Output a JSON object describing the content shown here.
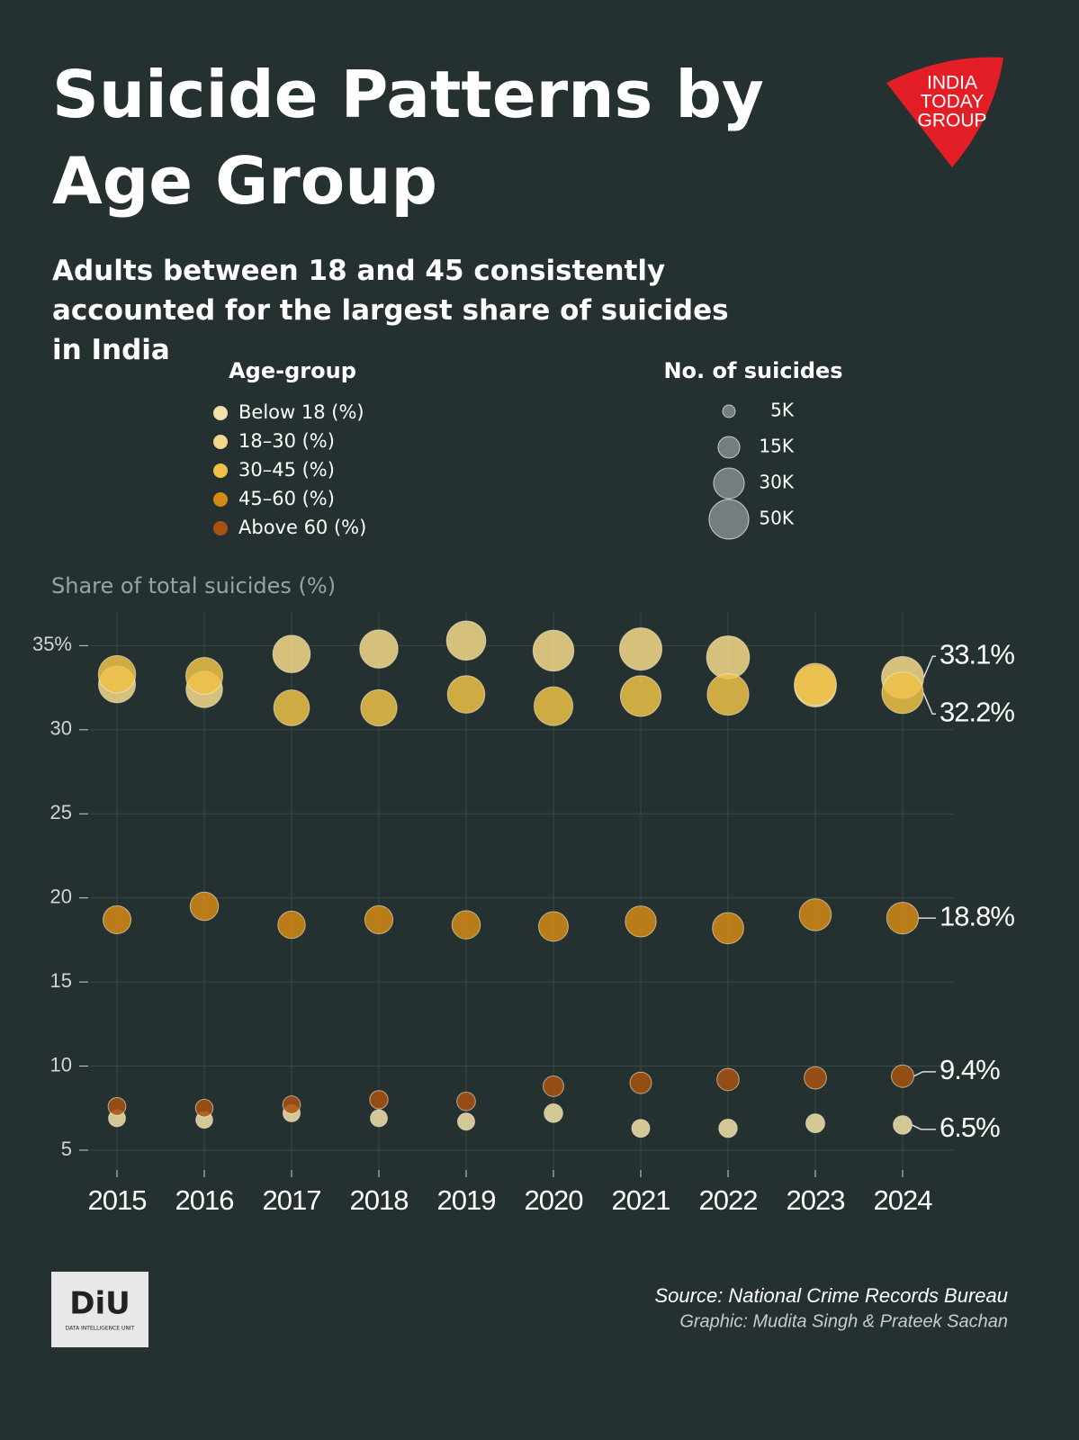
{
  "chart_data": {
    "type": "bubble",
    "title": "Suicide Patterns by Age Group",
    "subtitle": "Adults between 18 and 45 consistently accounted for the largest share of suicides in India",
    "legend_title": "Age-group",
    "size_legend_title": "No. of suicides",
    "y_label": "Share of total suicides (%)",
    "categories": [
      "2015",
      "2016",
      "2017",
      "2018",
      "2019",
      "2020",
      "2021",
      "2022",
      "2023",
      "2024"
    ],
    "ylim": [
      3.5,
      37
    ],
    "yticks": [
      5,
      10,
      15,
      20,
      25,
      30,
      {
        "value": 35,
        "label": "35%"
      }
    ],
    "grid": true,
    "size_ticks": [
      {
        "value": 5000,
        "label": "5K"
      },
      {
        "value": 15000,
        "label": "15K"
      },
      {
        "value": 30000,
        "label": "30K"
      },
      {
        "value": 50000,
        "label": "50K"
      }
    ],
    "series": [
      {
        "name": "Below 18 (%)",
        "color": "#f3e2a8",
        "values": [
          6.9,
          6.8,
          7.2,
          6.9,
          6.7,
          7.2,
          6.3,
          6.3,
          6.6,
          6.5
        ],
        "sizes": [
          9200,
          8900,
          9400,
          9200,
          9300,
          11000,
          10300,
          10800,
          11300,
          11100
        ],
        "value_labels": [
          null,
          null,
          null,
          null,
          null,
          null,
          null,
          null,
          null,
          "6.5%"
        ]
      },
      {
        "name": "18–30 (%)",
        "color": "#f5d98a",
        "values": [
          32.7,
          32.4,
          34.5,
          34.8,
          35.3,
          34.7,
          34.8,
          34.3,
          32.6,
          33.1
        ],
        "sizes": [
          43500,
          42400,
          44800,
          46600,
          49100,
          53100,
          57100,
          58700,
          55700,
          56600
        ],
        "value_labels": [
          null,
          null,
          null,
          null,
          null,
          null,
          null,
          null,
          null,
          "33.1%"
        ]
      },
      {
        "name": "30–45 (%)",
        "color": "#edc146",
        "values": [
          33.3,
          33.2,
          31.3,
          31.3,
          32.1,
          31.4,
          32.0,
          32.1,
          32.7,
          32.2
        ],
        "sizes": [
          44300,
          43500,
          40700,
          41900,
          44600,
          48000,
          52500,
          54900,
          55900,
          55100
        ],
        "value_labels": [
          null,
          null,
          null,
          null,
          null,
          null,
          null,
          null,
          null,
          "32.2%"
        ]
      },
      {
        "name": "45–60 (%)",
        "color": "#d38a14",
        "values": [
          18.7,
          19.5,
          18.4,
          18.7,
          18.4,
          18.3,
          18.6,
          18.2,
          19.0,
          18.8
        ],
        "sizes": [
          24900,
          25500,
          23900,
          25100,
          25600,
          28000,
          30500,
          31100,
          32500,
          32100
        ],
        "value_labels": [
          null,
          null,
          null,
          null,
          null,
          null,
          null,
          null,
          null,
          "18.8%"
        ]
      },
      {
        "name": "Above 60 (%)",
        "color": "#a8520f",
        "values": [
          7.6,
          7.5,
          7.7,
          8.0,
          7.9,
          8.8,
          9.0,
          9.2,
          9.3,
          9.4
        ],
        "sizes": [
          10100,
          9800,
          10000,
          10700,
          11000,
          13500,
          14800,
          15700,
          15900,
          16100
        ],
        "value_labels": [
          null,
          null,
          null,
          null,
          null,
          null,
          null,
          null,
          null,
          "9.4%"
        ]
      }
    ],
    "source": "Source: National Crime Records Bureau",
    "credit": "Graphic: Mudita Singh & Prateek Sachan"
  },
  "brand": {
    "publisher": [
      "INDIA",
      "TODAY",
      "GROUP"
    ],
    "unit": "DiU",
    "unit_name": "DATA INTELLIGENCE UNIT"
  }
}
